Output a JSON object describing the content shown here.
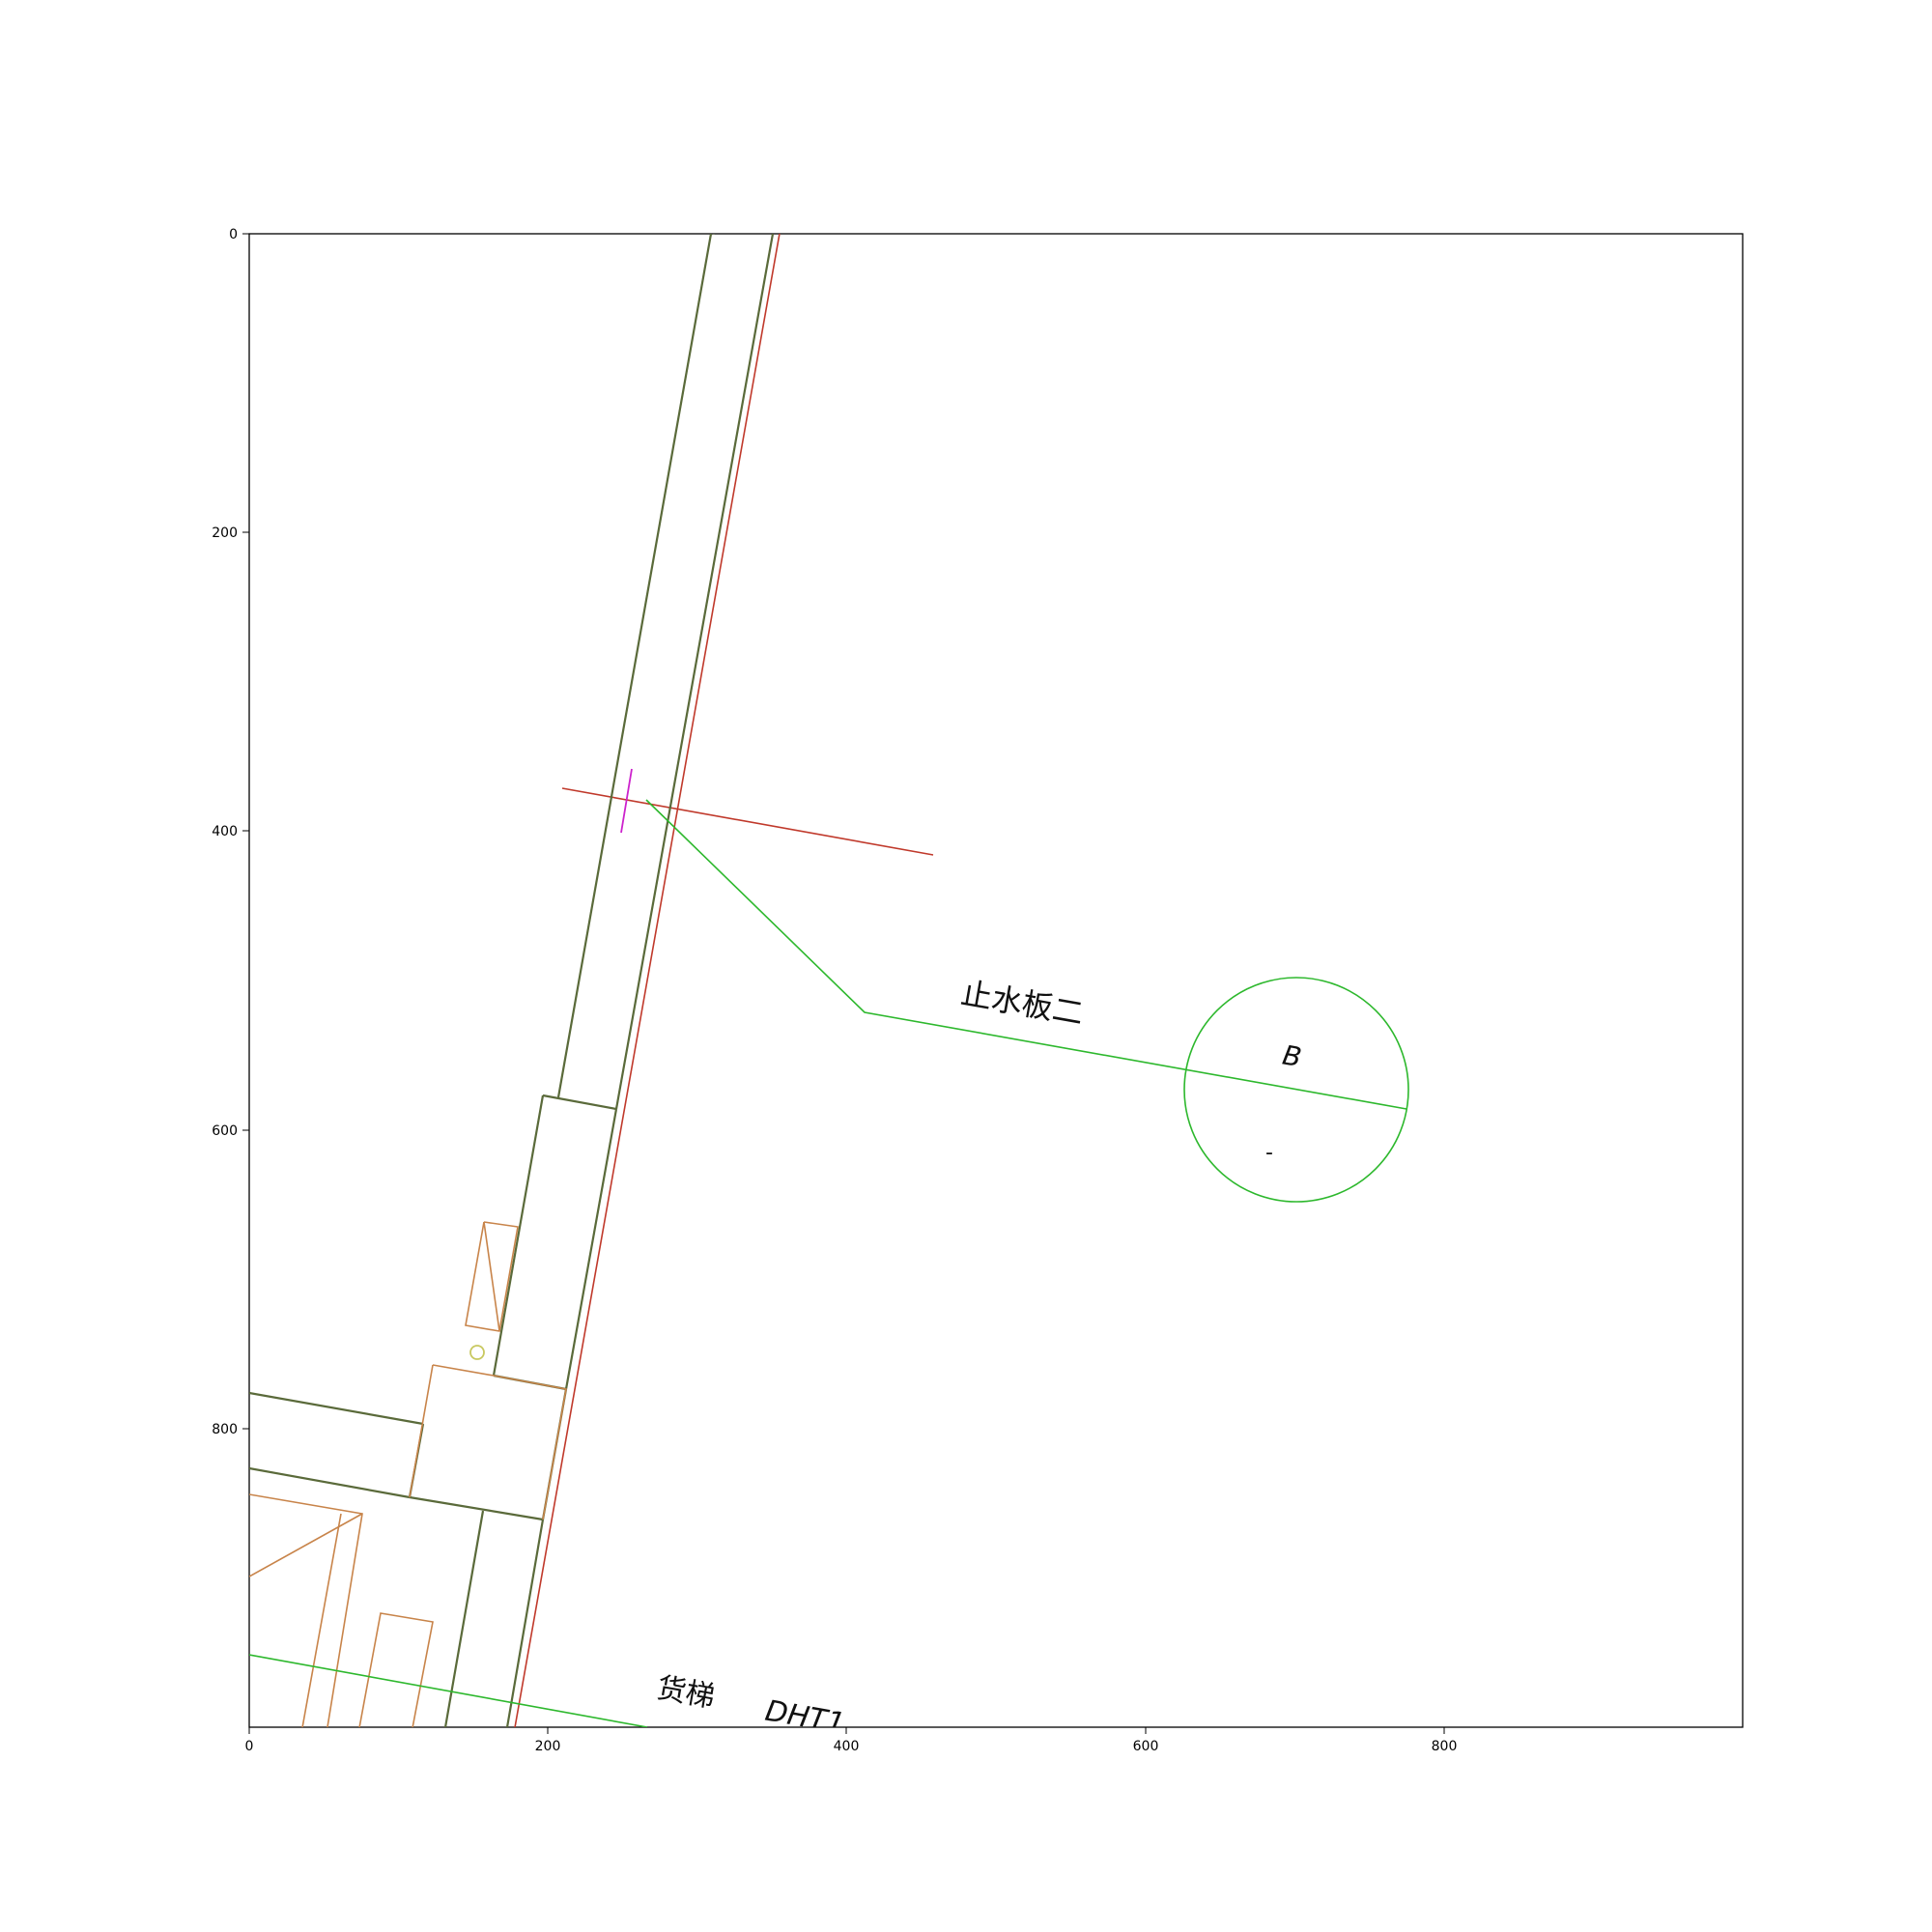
{
  "plot": {
    "x_ticks": [
      "0",
      "200",
      "400",
      "600",
      "800"
    ],
    "y_ticks": [
      "0",
      "200",
      "400",
      "600",
      "800"
    ],
    "xlim": [
      0,
      1000
    ],
    "ylim": [
      1000,
      0
    ]
  },
  "labels": {
    "water_stop": "止水板二",
    "detail_letter": "B",
    "detail_dash": "-",
    "freight_elevator": "货梯",
    "elevator_code": "DHT1"
  },
  "colors": {
    "wall": "#5a6a3a",
    "property_line": "#c0392b",
    "leader": "#2db82d",
    "furniture": "#c8844a",
    "magenta_tick": "#cc22cc",
    "small_circle": "#c8c860"
  }
}
